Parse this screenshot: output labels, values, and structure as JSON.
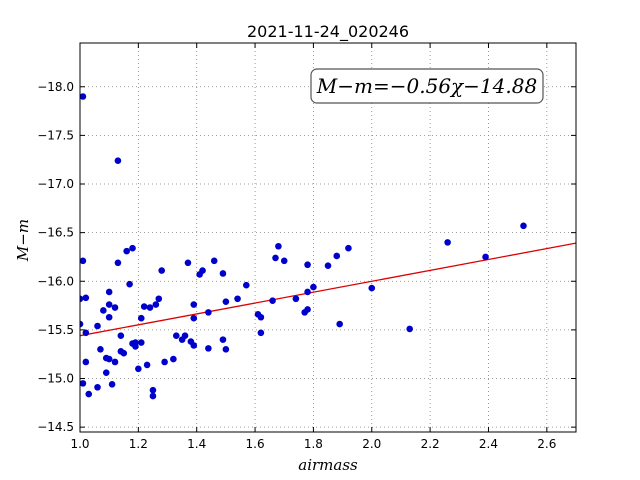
{
  "chart_data": {
    "type": "scatter",
    "title": "2021-11-24_020246",
    "xlabel": "airmass",
    "ylabel": "M−m",
    "xlim": [
      1.0,
      2.7
    ],
    "ylim": [
      -18.45,
      -14.45
    ],
    "y_inverted": true,
    "grid": true,
    "xticks": [
      "1.0",
      "1.2",
      "1.4",
      "1.6",
      "1.8",
      "2.0",
      "2.2",
      "2.4",
      "2.6"
    ],
    "yticks": [
      "−14.5",
      "−15.0",
      "−15.5",
      "−16.0",
      "−16.5",
      "−17.0",
      "−17.5",
      "−18.0"
    ],
    "annotation": "M−m=−0.56χ−14.88",
    "fit": {
      "slope": -0.56,
      "intercept": -14.88,
      "color": "#dd0000"
    },
    "point_color": "#0000cc",
    "points": [
      {
        "x": 1.0,
        "y": -15.56
      },
      {
        "x": 1.0,
        "y": -15.82
      },
      {
        "x": 1.01,
        "y": -16.21
      },
      {
        "x": 1.01,
        "y": -17.9
      },
      {
        "x": 1.01,
        "y": -14.95
      },
      {
        "x": 1.02,
        "y": -15.17
      },
      {
        "x": 1.02,
        "y": -15.47
      },
      {
        "x": 1.02,
        "y": -15.83
      },
      {
        "x": 1.03,
        "y": -14.84
      },
      {
        "x": 1.06,
        "y": -14.91
      },
      {
        "x": 1.06,
        "y": -15.54
      },
      {
        "x": 1.07,
        "y": -15.3
      },
      {
        "x": 1.08,
        "y": -15.7
      },
      {
        "x": 1.09,
        "y": -15.06
      },
      {
        "x": 1.09,
        "y": -15.21
      },
      {
        "x": 1.1,
        "y": -15.2
      },
      {
        "x": 1.1,
        "y": -15.63
      },
      {
        "x": 1.1,
        "y": -15.76
      },
      {
        "x": 1.1,
        "y": -15.89
      },
      {
        "x": 1.11,
        "y": -14.94
      },
      {
        "x": 1.12,
        "y": -15.17
      },
      {
        "x": 1.12,
        "y": -15.73
      },
      {
        "x": 1.13,
        "y": -17.24
      },
      {
        "x": 1.13,
        "y": -16.19
      },
      {
        "x": 1.14,
        "y": -15.28
      },
      {
        "x": 1.14,
        "y": -15.44
      },
      {
        "x": 1.15,
        "y": -15.26
      },
      {
        "x": 1.16,
        "y": -16.31
      },
      {
        "x": 1.17,
        "y": -15.97
      },
      {
        "x": 1.18,
        "y": -15.36
      },
      {
        "x": 1.18,
        "y": -16.34
      },
      {
        "x": 1.19,
        "y": -15.37
      },
      {
        "x": 1.19,
        "y": -15.33
      },
      {
        "x": 1.2,
        "y": -15.1
      },
      {
        "x": 1.21,
        "y": -15.37
      },
      {
        "x": 1.21,
        "y": -15.62
      },
      {
        "x": 1.22,
        "y": -15.74
      },
      {
        "x": 1.23,
        "y": -15.14
      },
      {
        "x": 1.24,
        "y": -15.73
      },
      {
        "x": 1.25,
        "y": -14.82
      },
      {
        "x": 1.25,
        "y": -14.88
      },
      {
        "x": 1.26,
        "y": -15.76
      },
      {
        "x": 1.27,
        "y": -15.82
      },
      {
        "x": 1.28,
        "y": -16.11
      },
      {
        "x": 1.29,
        "y": -15.17
      },
      {
        "x": 1.32,
        "y": -15.2
      },
      {
        "x": 1.33,
        "y": -15.44
      },
      {
        "x": 1.35,
        "y": -15.4
      },
      {
        "x": 1.36,
        "y": -15.44
      },
      {
        "x": 1.37,
        "y": -16.19
      },
      {
        "x": 1.38,
        "y": -15.38
      },
      {
        "x": 1.39,
        "y": -15.34
      },
      {
        "x": 1.39,
        "y": -15.62
      },
      {
        "x": 1.39,
        "y": -15.76
      },
      {
        "x": 1.41,
        "y": -16.07
      },
      {
        "x": 1.42,
        "y": -16.11
      },
      {
        "x": 1.44,
        "y": -15.31
      },
      {
        "x": 1.44,
        "y": -15.68
      },
      {
        "x": 1.46,
        "y": -16.21
      },
      {
        "x": 1.49,
        "y": -16.08
      },
      {
        "x": 1.49,
        "y": -15.4
      },
      {
        "x": 1.5,
        "y": -15.79
      },
      {
        "x": 1.5,
        "y": -15.3
      },
      {
        "x": 1.54,
        "y": -15.82
      },
      {
        "x": 1.57,
        "y": -15.96
      },
      {
        "x": 1.61,
        "y": -15.66
      },
      {
        "x": 1.62,
        "y": -15.47
      },
      {
        "x": 1.62,
        "y": -15.63
      },
      {
        "x": 1.66,
        "y": -15.8
      },
      {
        "x": 1.67,
        "y": -16.24
      },
      {
        "x": 1.68,
        "y": -16.36
      },
      {
        "x": 1.7,
        "y": -16.21
      },
      {
        "x": 1.74,
        "y": -15.82
      },
      {
        "x": 1.77,
        "y": -15.68
      },
      {
        "x": 1.78,
        "y": -15.71
      },
      {
        "x": 1.78,
        "y": -15.89
      },
      {
        "x": 1.78,
        "y": -16.17
      },
      {
        "x": 1.8,
        "y": -15.94
      },
      {
        "x": 1.85,
        "y": -16.16
      },
      {
        "x": 1.88,
        "y": -16.26
      },
      {
        "x": 1.89,
        "y": -15.56
      },
      {
        "x": 1.92,
        "y": -16.34
      },
      {
        "x": 2.0,
        "y": -15.93
      },
      {
        "x": 2.13,
        "y": -15.51
      },
      {
        "x": 2.26,
        "y": -16.4
      },
      {
        "x": 2.39,
        "y": -16.25
      },
      {
        "x": 2.52,
        "y": -16.57
      }
    ]
  }
}
